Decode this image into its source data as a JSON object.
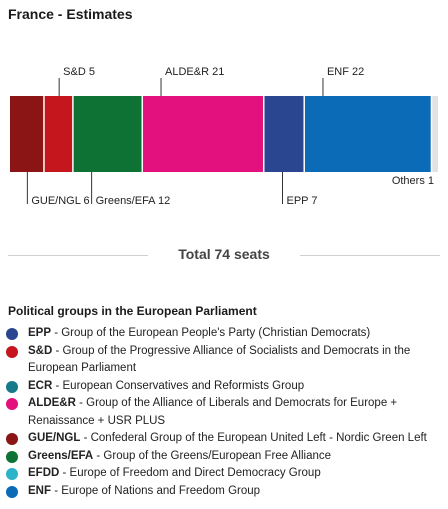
{
  "title": "France - Estimates",
  "total_label": "Total 74 seats",
  "legend_title": "Political groups in the European Parliament",
  "chart_data": {
    "type": "bar",
    "layout": "stacked-horizontal",
    "total": 74,
    "segments": [
      {
        "label": "GUE/NGL 6",
        "group": "GUE/NGL",
        "value": 6,
        "color": "#8b1515",
        "label_side": "below"
      },
      {
        "label": "S&D 5",
        "group": "S&D",
        "value": 5,
        "color": "#c4161c",
        "label_side": "above"
      },
      {
        "label": "Greens/EFA 12",
        "group": "Greens/EFA",
        "value": 12,
        "color": "#0e7234",
        "label_side": "below"
      },
      {
        "label": "ALDE&R 21",
        "group": "ALDE&R",
        "value": 21,
        "color": "#e3117d",
        "label_side": "above"
      },
      {
        "label": "EPP 7",
        "group": "EPP",
        "value": 7,
        "color": "#2a4690",
        "label_side": "below"
      },
      {
        "label": "ENF 22",
        "group": "ENF",
        "value": 22,
        "color": "#0b6bb7",
        "label_side": "above"
      },
      {
        "label": "Others 1",
        "group": "Others",
        "value": 1,
        "color": "#e2e2e2",
        "label_side": "below-inside"
      }
    ]
  },
  "legend": [
    {
      "abbr": "EPP",
      "desc": " - Group of the European People's Party (Christian Democrats)",
      "color": "#2a4690"
    },
    {
      "abbr": "S&D",
      "desc": " - Group of the Progressive Alliance of Socialists and Democrats in the European Parliament",
      "color": "#c4161c"
    },
    {
      "abbr": "ECR",
      "desc": " - European Conservatives and Reformists Group",
      "color": "#177a8a"
    },
    {
      "abbr": "ALDE&R",
      "desc": " - Group of the Alliance of Liberals and Democrats for Europe + Renaissance + USR PLUS",
      "color": "#e3117d"
    },
    {
      "abbr": "GUE/NGL",
      "desc": " - Confederal Group of the European United Left - Nordic Green Left",
      "color": "#8b1515"
    },
    {
      "abbr": "Greens/EFA",
      "desc": " - Group of the Greens/European Free Alliance",
      "color": "#0e7234"
    },
    {
      "abbr": "EFDD",
      "desc": " - Europe of Freedom and Direct Democracy Group",
      "color": "#2bb3c9"
    },
    {
      "abbr": "ENF",
      "desc": " - Europe of Nations and Freedom Group",
      "color": "#0b6bb7"
    }
  ]
}
